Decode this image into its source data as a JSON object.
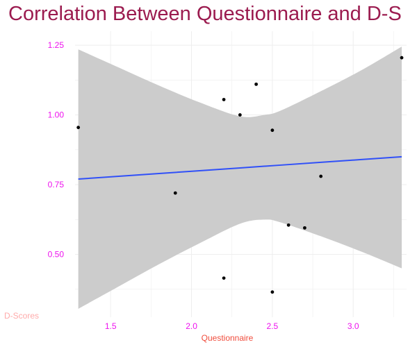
{
  "chart_data": {
    "type": "scatter",
    "title": "Correlation Between Questionnaire and D-S",
    "xlabel": "Questionnaire",
    "ylabel": "D-Scores",
    "xlim": [
      1.28,
      3.33
    ],
    "ylim": [
      0.275,
      1.3
    ],
    "x_ticks": [
      1.5,
      2.0,
      2.5,
      3.0
    ],
    "y_ticks": [
      0.5,
      0.75,
      1.0,
      1.25
    ],
    "x_tick_labels": [
      "1.5",
      "2.0",
      "2.5",
      "3.0"
    ],
    "y_tick_labels": [
      "0.50",
      "0.75",
      "1.00",
      "1.25"
    ],
    "points": [
      {
        "x": 1.3,
        "y": 0.955
      },
      {
        "x": 1.9,
        "y": 0.72
      },
      {
        "x": 2.2,
        "y": 1.055
      },
      {
        "x": 2.2,
        "y": 0.415
      },
      {
        "x": 2.3,
        "y": 1.0
      },
      {
        "x": 2.4,
        "y": 1.11
      },
      {
        "x": 2.5,
        "y": 0.945
      },
      {
        "x": 2.5,
        "y": 0.365
      },
      {
        "x": 2.6,
        "y": 0.605
      },
      {
        "x": 2.7,
        "y": 0.595
      },
      {
        "x": 2.8,
        "y": 0.78
      },
      {
        "x": 3.3,
        "y": 1.205
      }
    ],
    "fit": {
      "method": "linear regression",
      "x": [
        1.3,
        1.55,
        1.8,
        2.05,
        2.3,
        2.45,
        2.55,
        2.8,
        3.05,
        3.3
      ],
      "y": [
        0.77,
        0.78,
        0.79,
        0.8,
        0.81,
        0.816,
        0.82,
        0.83,
        0.84,
        0.85
      ],
      "lower": [
        0.305,
        0.385,
        0.465,
        0.54,
        0.61,
        0.625,
        0.615,
        0.565,
        0.51,
        0.45
      ],
      "upper": [
        1.235,
        1.17,
        1.105,
        1.045,
        0.995,
        1.0,
        1.015,
        1.085,
        1.16,
        1.245
      ]
    },
    "grid": true,
    "legend": "none",
    "colors": {
      "title": "#9b1b4f",
      "ticks": "#ee11ee",
      "xlabel": "#f04c3c",
      "ylabel": "#ffaaaa",
      "points": "#000000",
      "fit_line": "#3050f8",
      "ribbon": "#cccccc",
      "grid": "#eeeeee"
    }
  }
}
